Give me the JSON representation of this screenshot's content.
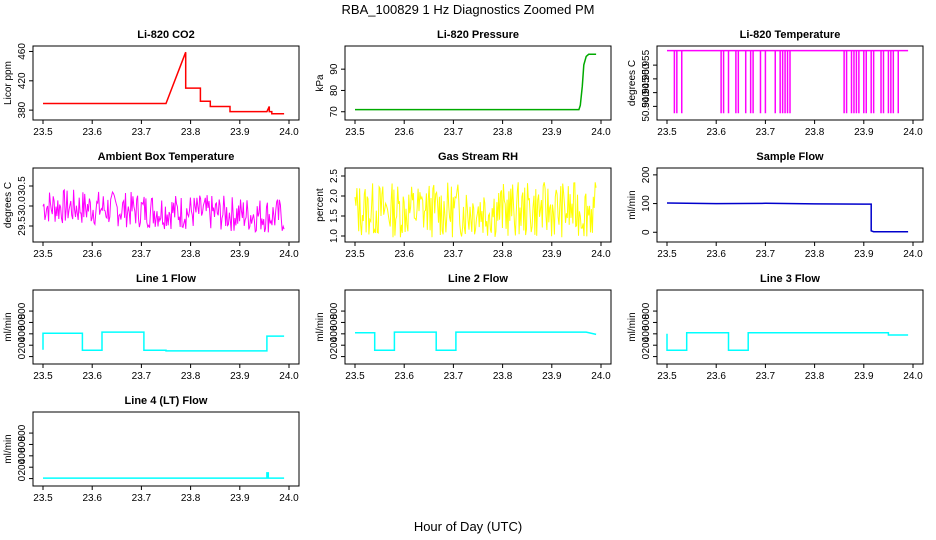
{
  "figure": {
    "title": "RBA_100829  1 Hz Diagnostics Zoomed PM",
    "xlabel": "Hour of Day (UTC)"
  },
  "chart_data": [
    {
      "id": "co2",
      "type": "line",
      "title": "Li-820 CO2",
      "ylabel": "Licor ppm",
      "color": "#ff0000",
      "xlim": [
        23.5,
        24.0
      ],
      "ylim": [
        372,
        462
      ],
      "xticks": [
        "23.5",
        "23.6",
        "23.7",
        "23.8",
        "23.9",
        "24.0"
      ],
      "yticks": [
        380,
        420,
        460
      ],
      "series": [
        {
          "x": [
            23.5,
            23.75,
            23.75,
            23.79,
            23.79,
            23.82,
            23.82,
            23.84,
            23.84,
            23.88,
            23.88,
            23.955,
            23.96,
            23.96,
            23.965,
            23.965,
            23.99
          ],
          "y": [
            389,
            389,
            389,
            459,
            410,
            410,
            392,
            392,
            385,
            385,
            378,
            378,
            385,
            378,
            378,
            375,
            375
          ]
        }
      ]
    },
    {
      "id": "pressure",
      "type": "line",
      "title": "Li-820 Pressure",
      "ylabel": "kPa",
      "color": "#00aa00",
      "xlim": [
        23.5,
        24.0
      ],
      "ylim": [
        68,
        99
      ],
      "xticks": [
        "23.5",
        "23.6",
        "23.7",
        "23.8",
        "23.9",
        "24.0"
      ],
      "yticks": [
        70,
        80,
        90
      ],
      "series": [
        {
          "x": [
            23.5,
            23.955,
            23.958,
            23.962,
            23.965,
            23.97,
            23.975,
            23.99
          ],
          "y": [
            71,
            71,
            73,
            82,
            92,
            96,
            97,
            97
          ]
        }
      ]
    },
    {
      "id": "licor_temp",
      "type": "line",
      "title": "Li-820 Temperature",
      "ylabel": "degrees C",
      "color": "#ff00ff",
      "xlim": [
        23.5,
        24.0
      ],
      "ylim": [
        50.9365,
        50.9605
      ],
      "xticks": [
        "23.5",
        "23.6",
        "23.7",
        "23.8",
        "23.9",
        "24.0"
      ],
      "yticks": [
        50.94,
        50.945,
        50.95,
        50.955
      ],
      "series": [
        {
          "x": [
            23.5,
            23.99
          ],
          "y": [
            50.9603,
            50.9603
          ]
        }
      ],
      "drops_x": [
        23.515,
        23.52,
        23.53,
        23.61,
        23.615,
        23.625,
        23.64,
        23.645,
        23.66,
        23.67,
        23.675,
        23.69,
        23.7,
        23.72,
        23.73,
        23.735,
        23.74,
        23.745,
        23.75,
        23.86,
        23.865,
        23.875,
        23.88,
        23.885,
        23.89,
        23.9,
        23.905,
        23.915,
        23.92,
        23.935,
        23.94,
        23.95,
        23.955,
        23.96,
        23.97
      ],
      "drop_low": 50.9375
    },
    {
      "id": "box_temp",
      "type": "line",
      "title": "Ambient Box Temperature",
      "ylabel": "degrees C",
      "color": "#ff00ff",
      "xlim": [
        23.5,
        24.0
      ],
      "ylim": [
        29.2,
        30.85
      ],
      "xticks": [
        "23.5",
        "23.6",
        "23.7",
        "23.8",
        "23.9",
        "24.0"
      ],
      "yticks": [
        29.5,
        30.0,
        30.5
      ],
      "noise": {
        "start": 30.0,
        "end": 29.75,
        "amp": 0.45,
        "seed": 7
      }
    },
    {
      "id": "rh",
      "type": "line",
      "title": "Gas Stream RH",
      "ylabel": "percent",
      "color": "#ffff00",
      "xlim": [
        23.5,
        24.0
      ],
      "ylim": [
        0.95,
        2.6
      ],
      "xticks": [
        "23.5",
        "23.6",
        "23.7",
        "23.8",
        "23.9",
        "24.0"
      ],
      "yticks": [
        1.0,
        1.5,
        2.0,
        2.5
      ],
      "noise": {
        "start": 1.65,
        "end": 1.65,
        "amp": 0.7,
        "seed": 13
      }
    },
    {
      "id": "sample_flow",
      "type": "line",
      "title": "Sample Flow",
      "ylabel": "ml/min",
      "color": "#0000cc",
      "xlim": [
        23.5,
        24.0
      ],
      "ylim": [
        -20,
        210
      ],
      "xticks": [
        "23.5",
        "23.6",
        "23.7",
        "23.8",
        "23.9",
        "24.0"
      ],
      "yticks": [
        0,
        100,
        200
      ],
      "series": [
        {
          "x": [
            23.5,
            23.6,
            23.7,
            23.8,
            23.9,
            23.915,
            23.915,
            23.92,
            23.99
          ],
          "y": [
            102,
            100,
            101,
            99,
            98,
            98,
            5,
            2,
            2
          ]
        }
      ]
    },
    {
      "id": "line1",
      "type": "line",
      "title": "Line 1 Flow",
      "ylabel": "ml/min",
      "color": "#00ffff",
      "xlim": [
        23.5,
        24.0
      ],
      "ylim": [
        -60,
        1100
      ],
      "xticks": [
        "23.5",
        "23.6",
        "23.7",
        "23.8",
        "23.9",
        "24.0"
      ],
      "yticks": [
        0,
        200,
        400,
        600,
        800
      ],
      "series": [
        {
          "x": [
            23.5,
            23.5,
            23.58,
            23.58,
            23.62,
            23.62,
            23.705,
            23.705,
            23.75,
            23.75,
            23.955,
            23.955,
            23.99
          ],
          "y": [
            120,
            410,
            410,
            110,
            110,
            430,
            430,
            110,
            110,
            100,
            100,
            360,
            360
          ]
        }
      ]
    },
    {
      "id": "line2",
      "type": "line",
      "title": "Line 2 Flow",
      "ylabel": "ml/min",
      "color": "#00ffff",
      "xlim": [
        23.5,
        24.0
      ],
      "ylim": [
        -60,
        1100
      ],
      "xticks": [
        "23.5",
        "23.6",
        "23.7",
        "23.8",
        "23.9",
        "24.0"
      ],
      "yticks": [
        0,
        200,
        400,
        600,
        800
      ],
      "series": [
        {
          "x": [
            23.5,
            23.54,
            23.54,
            23.58,
            23.58,
            23.665,
            23.665,
            23.705,
            23.705,
            23.97,
            23.99
          ],
          "y": [
            420,
            420,
            110,
            110,
            430,
            430,
            110,
            110,
            430,
            430,
            390
          ]
        }
      ]
    },
    {
      "id": "line3",
      "type": "line",
      "title": "Line 3 Flow",
      "ylabel": "ml/min",
      "color": "#00ffff",
      "xlim": [
        23.5,
        24.0
      ],
      "ylim": [
        -60,
        1100
      ],
      "xticks": [
        "23.5",
        "23.6",
        "23.7",
        "23.8",
        "23.9",
        "24.0"
      ],
      "yticks": [
        0,
        200,
        400,
        600,
        800
      ],
      "series": [
        {
          "x": [
            23.5,
            23.5,
            23.54,
            23.54,
            23.625,
            23.625,
            23.665,
            23.665,
            23.95,
            23.95,
            23.99
          ],
          "y": [
            400,
            110,
            110,
            420,
            420,
            110,
            110,
            420,
            420,
            380,
            380
          ]
        }
      ]
    },
    {
      "id": "line4",
      "type": "line",
      "title": "Line 4 (LT) Flow",
      "ylabel": "ml/min",
      "color": "#00ffff",
      "xlim": [
        23.5,
        24.0
      ],
      "ylim": [
        -60,
        1100
      ],
      "xticks": [
        "23.5",
        "23.6",
        "23.7",
        "23.8",
        "23.9",
        "24.0"
      ],
      "yticks": [
        0,
        200,
        400,
        600,
        800
      ],
      "series": [
        {
          "x": [
            23.5,
            23.955,
            23.955,
            23.958,
            23.958,
            23.99
          ],
          "y": [
            8,
            8,
            100,
            100,
            10,
            8
          ]
        }
      ]
    }
  ]
}
